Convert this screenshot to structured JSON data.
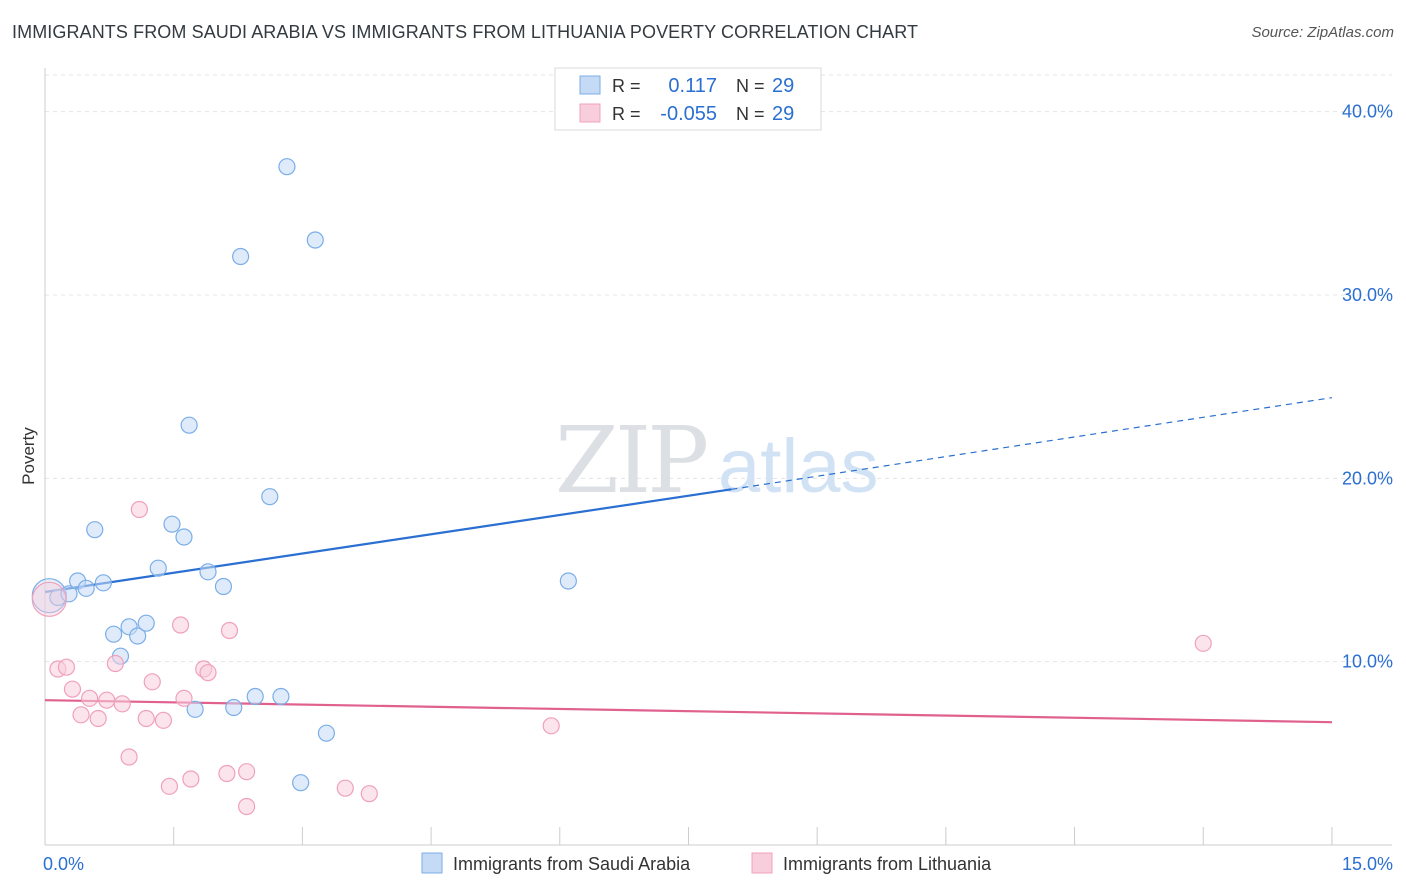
{
  "chart_data": {
    "type": "scatter",
    "title": "IMMIGRANTS FROM SAUDI ARABIA VS IMMIGRANTS FROM LITHUANIA POVERTY CORRELATION CHART",
    "source": "Source: ZipAtlas.com",
    "xlabel": "",
    "ylabel": "Poverty",
    "xlim": [
      0,
      15.7
    ],
    "ylim": [
      0,
      42
    ],
    "x_tick_labels": [
      {
        "value": 0,
        "label": "0.0%"
      },
      {
        "value": 15,
        "label": "15.0%"
      }
    ],
    "y_tick_labels": [
      {
        "value": 10,
        "label": "10.0%"
      },
      {
        "value": 20,
        "label": "20.0%"
      },
      {
        "value": 30,
        "label": "30.0%"
      },
      {
        "value": 40,
        "label": "40.0%"
      }
    ],
    "x_minor_ticks": [
      0,
      1.5,
      3,
      4.5,
      6,
      7.5,
      9,
      10.5,
      12,
      13.5,
      15
    ],
    "watermark": {
      "zip": "ZIP",
      "atlas": "atlas"
    },
    "legend_box": {
      "rows": [
        {
          "r_label": "R =",
          "r_value": "0.117",
          "n_label": "N =",
          "n_value": "29"
        },
        {
          "r_label": "R =",
          "r_value": "-0.055",
          "n_label": "N =",
          "n_value": "29"
        }
      ]
    },
    "series": [
      {
        "name": "Immigrants from Saudi Arabia",
        "color": "#7aaee8",
        "fill": "#c5dbf5",
        "line_color": "#2a6fd1",
        "trend": {
          "x0": 0,
          "y0": 13.8,
          "x1": 8,
          "y1": 19.4,
          "x_dash_end": 15,
          "y_dash_end": 24.4
        },
        "points": [
          {
            "x": 0.05,
            "y": 13.6,
            "big": true
          },
          {
            "x": 0.15,
            "y": 13.5
          },
          {
            "x": 0.28,
            "y": 13.7
          },
          {
            "x": 0.38,
            "y": 14.4
          },
          {
            "x": 0.48,
            "y": 14.0
          },
          {
            "x": 0.58,
            "y": 17.2
          },
          {
            "x": 0.68,
            "y": 14.3
          },
          {
            "x": 0.8,
            "y": 11.5
          },
          {
            "x": 0.88,
            "y": 10.3
          },
          {
            "x": 0.98,
            "y": 11.9
          },
          {
            "x": 1.08,
            "y": 11.4
          },
          {
            "x": 1.18,
            "y": 12.1
          },
          {
            "x": 1.32,
            "y": 15.1
          },
          {
            "x": 1.48,
            "y": 17.5
          },
          {
            "x": 1.62,
            "y": 16.8
          },
          {
            "x": 1.68,
            "y": 22.9
          },
          {
            "x": 1.75,
            "y": 7.4
          },
          {
            "x": 1.9,
            "y": 14.9
          },
          {
            "x": 2.08,
            "y": 14.1
          },
          {
            "x": 2.2,
            "y": 7.5
          },
          {
            "x": 2.28,
            "y": 32.1
          },
          {
            "x": 2.45,
            "y": 8.1
          },
          {
            "x": 2.62,
            "y": 19.0
          },
          {
            "x": 2.75,
            "y": 8.1
          },
          {
            "x": 2.82,
            "y": 37.0
          },
          {
            "x": 2.98,
            "y": 3.4
          },
          {
            "x": 3.15,
            "y": 33.0
          },
          {
            "x": 3.28,
            "y": 6.1
          },
          {
            "x": 6.1,
            "y": 14.4
          }
        ]
      },
      {
        "name": "Immigrants from Lithuania",
        "color": "#f0a0bc",
        "fill": "#f8cedc",
        "line_color": "#e0608e",
        "trend": {
          "x0": 0,
          "y0": 7.9,
          "x1": 15,
          "y1": 6.7
        },
        "points": [
          {
            "x": 0.05,
            "y": 13.4,
            "big": true
          },
          {
            "x": 0.15,
            "y": 9.6
          },
          {
            "x": 0.25,
            "y": 9.7
          },
          {
            "x": 0.32,
            "y": 8.5
          },
          {
            "x": 0.42,
            "y": 7.1
          },
          {
            "x": 0.52,
            "y": 8.0
          },
          {
            "x": 0.62,
            "y": 6.9
          },
          {
            "x": 0.72,
            "y": 7.9
          },
          {
            "x": 0.82,
            "y": 9.9
          },
          {
            "x": 0.9,
            "y": 7.7
          },
          {
            "x": 0.98,
            "y": 4.8
          },
          {
            "x": 1.1,
            "y": 18.3
          },
          {
            "x": 1.18,
            "y": 6.9
          },
          {
            "x": 1.25,
            "y": 8.9
          },
          {
            "x": 1.38,
            "y": 6.8
          },
          {
            "x": 1.45,
            "y": 3.2
          },
          {
            "x": 1.58,
            "y": 12.0
          },
          {
            "x": 1.62,
            "y": 8.0
          },
          {
            "x": 1.7,
            "y": 3.6
          },
          {
            "x": 1.85,
            "y": 9.6
          },
          {
            "x": 1.9,
            "y": 9.4
          },
          {
            "x": 2.12,
            "y": 3.9
          },
          {
            "x": 2.15,
            "y": 11.7
          },
          {
            "x": 2.35,
            "y": 2.1
          },
          {
            "x": 2.35,
            "y": 4.0
          },
          {
            "x": 3.5,
            "y": 3.1
          },
          {
            "x": 3.78,
            "y": 2.8
          },
          {
            "x": 5.9,
            "y": 6.5
          },
          {
            "x": 13.5,
            "y": 11.0
          }
        ]
      }
    ]
  }
}
